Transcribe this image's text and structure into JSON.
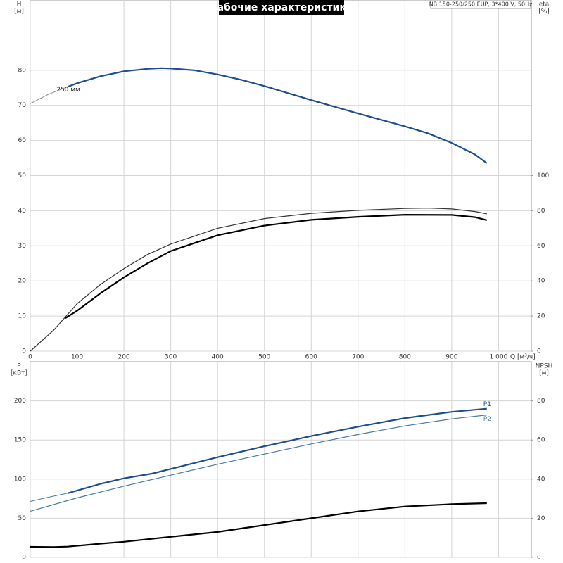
{
  "chart_data": [
    {
      "type": "line",
      "title": "Рабочие характеристики",
      "info": "NB 150-250/250 EUP, 3*400 V, 50Hz",
      "ylabel": "H",
      "yunit": "[м]",
      "y2label": "eta",
      "y2unit": "[%]",
      "xlabel": "Q [м³/ч]",
      "xlim": [
        0,
        1070
      ],
      "xticks": [
        0,
        100,
        200,
        300,
        400,
        500,
        600,
        700,
        800,
        900,
        {
          "value": 1000,
          "label": "1 000"
        }
      ],
      "ylim": [
        0,
        100
      ],
      "yticks": [
        0,
        10,
        20,
        30,
        40,
        50,
        60,
        70,
        80
      ],
      "y2lim": [
        0,
        200
      ],
      "y2ticks": [
        0,
        20,
        40,
        60,
        80,
        100
      ],
      "grid": true,
      "series": [
        {
          "color": "#888888",
          "width": 1,
          "x": [
            0,
            40,
            80
          ],
          "values": [
            70.5,
            73.2,
            75.3
          ]
        },
        {
          "name": "250 мм",
          "label_at": "start",
          "color": "#1f4e8c",
          "width": 2.2,
          "x": [
            80,
            100,
            150,
            200,
            250,
            280,
            300,
            350,
            400,
            450,
            500,
            600,
            700,
            800,
            850,
            900,
            950,
            975
          ],
          "values": [
            75.3,
            76.3,
            78.3,
            79.7,
            80.4,
            80.6,
            80.5,
            80,
            78.8,
            77.3,
            75.5,
            71.5,
            67.7,
            64,
            62,
            59.3,
            56,
            53.5
          ]
        },
        {
          "color": "#333333",
          "width": 1.2,
          "axis": "y2",
          "x": [
            0,
            50,
            100,
            150,
            200,
            250,
            300,
            400,
            500,
            600,
            700,
            800,
            850,
            900,
            950,
            975
          ],
          "values": [
            0,
            12,
            27,
            38,
            47,
            55,
            61,
            70,
            75.5,
            78.5,
            80.2,
            81.3,
            81.5,
            81,
            79.5,
            78.2
          ]
        },
        {
          "color": "#000000",
          "width": 2.2,
          "axis": "y2",
          "x": [
            75,
            100,
            150,
            200,
            250,
            300,
            400,
            500,
            600,
            700,
            800,
            900,
            950,
            975
          ],
          "values": [
            18.8,
            23,
            33,
            42,
            50,
            57,
            66,
            71.5,
            74.8,
            76.5,
            77.7,
            77.6,
            76.3,
            74.6
          ]
        }
      ]
    },
    {
      "type": "line",
      "ylabel": "P",
      "yunit": "[кВт]",
      "y2label": "NPSH",
      "y2unit": "[м]",
      "xlim": [
        0,
        1070
      ],
      "xticks": [
        0,
        100,
        200,
        300,
        400,
        500,
        600,
        700,
        800,
        900,
        1000
      ],
      "ylim": [
        0,
        250
      ],
      "yticks": [
        0,
        50,
        100,
        150,
        200
      ],
      "y2lim": [
        0,
        100
      ],
      "y2ticks": [
        0,
        20,
        40,
        60,
        80
      ],
      "grid": true,
      "series": [
        {
          "color": "#4a78a8",
          "width": 1,
          "x": [
            0,
            40,
            80
          ],
          "values": [
            71.5,
            77,
            82
          ]
        },
        {
          "name": "P1",
          "label_at": "end",
          "color": "#1f4e8c",
          "width": 2.2,
          "x": [
            80,
            150,
            200,
            260,
            300,
            400,
            500,
            600,
            700,
            800,
            900,
            975
          ],
          "values": [
            82,
            94,
            101,
            107,
            113,
            128,
            142,
            155,
            167,
            178,
            186,
            190
          ]
        },
        {
          "name": "P2",
          "label_at": "end",
          "color": "#4a78a8",
          "width": 1.2,
          "x": [
            0,
            100,
            200,
            300,
            400,
            500,
            600,
            700,
            800,
            900,
            975
          ],
          "values": [
            59,
            76,
            91,
            105,
            119,
            132,
            145,
            157,
            168,
            177,
            182
          ]
        },
        {
          "color": "#000000",
          "width": 2.2,
          "axis": "y2",
          "x": [
            0,
            50,
            80,
            150,
            200,
            300,
            400,
            500,
            600,
            700,
            800,
            900,
            975
          ],
          "values": [
            5.4,
            5.3,
            5.5,
            7,
            8,
            10.5,
            13,
            16.5,
            20,
            23.5,
            26,
            27.2,
            27.7
          ]
        }
      ]
    }
  ]
}
